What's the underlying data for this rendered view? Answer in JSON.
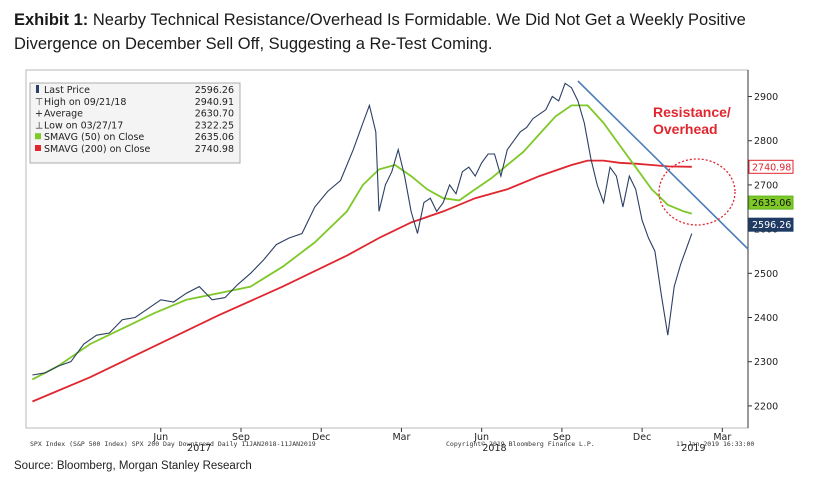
{
  "exhibit": {
    "label": "Exhibit 1:",
    "text": "Nearby Technical Resistance/Overhead Is Formidable. We Did Not Get a Weekly Positive Divergence on December Sell Off, Suggesting a Re-Test Coming."
  },
  "source": "Source: Bloomberg, Morgan Stanley Research",
  "chart_data": {
    "type": "line",
    "title": "",
    "ylim": [
      2150,
      2960
    ],
    "y_ticks": [
      2200,
      2300,
      2400,
      2500,
      2600,
      2700,
      2800,
      2900
    ],
    "x_ticks": [
      {
        "label": "Jun",
        "date": 2017.42
      },
      {
        "label": "Sep",
        "date": 2017.67
      },
      {
        "label": "Dec",
        "date": 2017.92
      },
      {
        "label": "Mar",
        "date": 2018.17
      },
      {
        "label": "Jun",
        "date": 2018.42
      },
      {
        "label": "Sep",
        "date": 2018.67
      },
      {
        "label": "Dec",
        "date": 2018.92
      },
      {
        "label": "Mar",
        "date": 2019.17
      }
    ],
    "years": [
      {
        "label": "2017",
        "date": 2017.54
      },
      {
        "label": "2018",
        "date": 2018.46
      },
      {
        "label": "2019",
        "date": 2019.08
      }
    ],
    "xlim": [
      2017.0,
      2019.25
    ],
    "legend": [
      {
        "label": "Last Price",
        "value": "2596.26",
        "marker": "bar"
      },
      {
        "label": "High on 09/21/18",
        "value": "2940.91",
        "marker": "T"
      },
      {
        "label": "Average",
        "value": "2630.70",
        "marker": "+"
      },
      {
        "label": "Low on 03/27/17",
        "value": "2322.25",
        "marker": "L"
      },
      {
        "label": "SMAVG (50) on Close",
        "value": "2635.06",
        "marker": "green"
      },
      {
        "label": "SMAVG (200) on Close",
        "value": "2740.98",
        "marker": "red"
      }
    ],
    "price": [
      [
        2017.02,
        2270
      ],
      [
        2017.06,
        2275
      ],
      [
        2017.1,
        2290
      ],
      [
        2017.14,
        2300
      ],
      [
        2017.18,
        2340
      ],
      [
        2017.22,
        2360
      ],
      [
        2017.26,
        2365
      ],
      [
        2017.3,
        2395
      ],
      [
        2017.34,
        2400
      ],
      [
        2017.38,
        2420
      ],
      [
        2017.42,
        2440
      ],
      [
        2017.46,
        2435
      ],
      [
        2017.5,
        2455
      ],
      [
        2017.54,
        2470
      ],
      [
        2017.58,
        2440
      ],
      [
        2017.62,
        2445
      ],
      [
        2017.66,
        2475
      ],
      [
        2017.7,
        2500
      ],
      [
        2017.74,
        2530
      ],
      [
        2017.78,
        2565
      ],
      [
        2017.82,
        2580
      ],
      [
        2017.86,
        2590
      ],
      [
        2017.9,
        2650
      ],
      [
        2017.94,
        2685
      ],
      [
        2017.98,
        2710
      ],
      [
        2018.02,
        2780
      ],
      [
        2018.05,
        2840
      ],
      [
        2018.07,
        2880
      ],
      [
        2018.09,
        2820
      ],
      [
        2018.1,
        2640
      ],
      [
        2018.12,
        2700
      ],
      [
        2018.14,
        2730
      ],
      [
        2018.16,
        2780
      ],
      [
        2018.18,
        2720
      ],
      [
        2018.2,
        2640
      ],
      [
        2018.22,
        2590
      ],
      [
        2018.24,
        2660
      ],
      [
        2018.26,
        2670
      ],
      [
        2018.28,
        2640
      ],
      [
        2018.3,
        2660
      ],
      [
        2018.32,
        2700
      ],
      [
        2018.34,
        2680
      ],
      [
        2018.36,
        2730
      ],
      [
        2018.38,
        2740
      ],
      [
        2018.4,
        2720
      ],
      [
        2018.42,
        2750
      ],
      [
        2018.44,
        2770
      ],
      [
        2018.46,
        2770
      ],
      [
        2018.48,
        2720
      ],
      [
        2018.5,
        2780
      ],
      [
        2018.52,
        2800
      ],
      [
        2018.54,
        2820
      ],
      [
        2018.56,
        2830
      ],
      [
        2018.58,
        2850
      ],
      [
        2018.6,
        2860
      ],
      [
        2018.62,
        2870
      ],
      [
        2018.64,
        2900
      ],
      [
        2018.66,
        2890
      ],
      [
        2018.68,
        2930
      ],
      [
        2018.7,
        2920
      ],
      [
        2018.72,
        2890
      ],
      [
        2018.74,
        2840
      ],
      [
        2018.76,
        2760
      ],
      [
        2018.78,
        2700
      ],
      [
        2018.8,
        2660
      ],
      [
        2018.82,
        2740
      ],
      [
        2018.84,
        2720
      ],
      [
        2018.86,
        2650
      ],
      [
        2018.88,
        2720
      ],
      [
        2018.9,
        2690
      ],
      [
        2018.92,
        2620
      ],
      [
        2018.94,
        2580
      ],
      [
        2018.96,
        2550
      ],
      [
        2018.98,
        2450
      ],
      [
        2019.0,
        2360
      ],
      [
        2019.02,
        2470
      ],
      [
        2019.04,
        2520
      ],
      [
        2019.06,
        2560
      ],
      [
        2019.075,
        2590
      ]
    ],
    "sma50": [
      [
        2017.02,
        2260
      ],
      [
        2017.1,
        2290
      ],
      [
        2017.2,
        2340
      ],
      [
        2017.3,
        2375
      ],
      [
        2017.4,
        2410
      ],
      [
        2017.5,
        2440
      ],
      [
        2017.6,
        2455
      ],
      [
        2017.7,
        2470
      ],
      [
        2017.8,
        2515
      ],
      [
        2017.9,
        2570
      ],
      [
        2018.0,
        2640
      ],
      [
        2018.05,
        2700
      ],
      [
        2018.1,
        2735
      ],
      [
        2018.15,
        2745
      ],
      [
        2018.2,
        2720
      ],
      [
        2018.25,
        2690
      ],
      [
        2018.3,
        2670
      ],
      [
        2018.35,
        2665
      ],
      [
        2018.4,
        2690
      ],
      [
        2018.45,
        2715
      ],
      [
        2018.5,
        2745
      ],
      [
        2018.55,
        2775
      ],
      [
        2018.6,
        2815
      ],
      [
        2018.65,
        2855
      ],
      [
        2018.7,
        2880
      ],
      [
        2018.75,
        2880
      ],
      [
        2018.8,
        2840
      ],
      [
        2018.85,
        2790
      ],
      [
        2018.9,
        2740
      ],
      [
        2018.95,
        2690
      ],
      [
        2019.0,
        2655
      ],
      [
        2019.05,
        2640
      ],
      [
        2019.075,
        2635
      ]
    ],
    "sma200": [
      [
        2017.02,
        2210
      ],
      [
        2017.2,
        2265
      ],
      [
        2017.4,
        2335
      ],
      [
        2017.6,
        2405
      ],
      [
        2017.8,
        2470
      ],
      [
        2018.0,
        2540
      ],
      [
        2018.1,
        2580
      ],
      [
        2018.2,
        2615
      ],
      [
        2018.3,
        2640
      ],
      [
        2018.4,
        2670
      ],
      [
        2018.5,
        2690
      ],
      [
        2018.6,
        2720
      ],
      [
        2018.7,
        2745
      ],
      [
        2018.75,
        2755
      ],
      [
        2018.8,
        2755
      ],
      [
        2018.85,
        2750
      ],
      [
        2018.9,
        2748
      ],
      [
        2018.95,
        2745
      ],
      [
        2019.0,
        2742
      ],
      [
        2019.075,
        2741
      ]
    ],
    "downtrend": [
      [
        2018.72,
        2935
      ],
      [
        2019.25,
        2555
      ]
    ],
    "value_tags": [
      {
        "value": "2740.98",
        "y": 2740.98,
        "color": "#e0262f",
        "text_color": "#e0262f",
        "fill": "#ffffff"
      },
      {
        "value": "2635.06",
        "y": 2660,
        "color": "#5fb318",
        "text_color": "#111111",
        "fill": "#7ec828"
      },
      {
        "value": "2596.26",
        "y": 2610,
        "color": "#1f3a63",
        "text_color": "#ffffff",
        "fill": "#1f3a63"
      }
    ],
    "annotation": "Resistance/\nOverhead",
    "annotation_lines": [
      "Resistance/",
      "Overhead"
    ],
    "footer_left": "SPX Index (S&P 500 Index) SPX 200 Day Downtrend  Daily 11JAN2018-11JAN2019",
    "footer_center": "Copyright© 2019 Bloomberg Finance L.P.",
    "footer_right": "11-Jan-2019 16:33:00"
  },
  "colors": {
    "price": "#2c3f63",
    "sma50": "#7ec828",
    "sma200": "#e0262f",
    "downtrend": "#4f7fb8",
    "annotation": "#e0262f"
  }
}
